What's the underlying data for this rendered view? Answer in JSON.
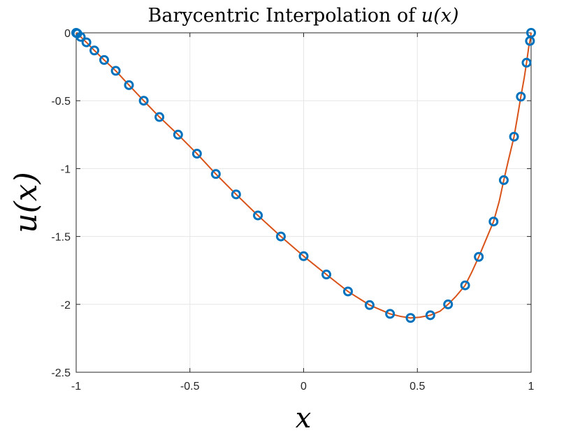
{
  "chart_data": {
    "type": "line",
    "title": "Barycentric Interpolation of u(x)",
    "xlabel": "x",
    "ylabel": "u(x)",
    "xlim": [
      -1,
      1
    ],
    "ylim": [
      -2.5,
      0
    ],
    "xticks": [
      -1,
      -0.5,
      0,
      0.5,
      1
    ],
    "xtick_labels": [
      "-1",
      "-0.5",
      "0",
      "0.5",
      "1"
    ],
    "yticks": [
      0,
      -0.5,
      -1,
      -1.5,
      -2,
      -2.5
    ],
    "ytick_labels": [
      "0",
      "-0.5",
      "-1",
      "-1.5",
      "-2",
      "-2.5"
    ],
    "grid": true,
    "series": [
      {
        "kind": "markers",
        "marker": "circle",
        "color": "#0072BD",
        "x": [
          -1.0,
          -0.995,
          -0.98,
          -0.955,
          -0.92,
          -0.877,
          -0.826,
          -0.768,
          -0.703,
          -0.634,
          -0.552,
          -0.469,
          -0.386,
          -0.297,
          -0.201,
          -0.1,
          0.0,
          0.1,
          0.195,
          0.29,
          0.38,
          0.47,
          0.557,
          0.635,
          0.71,
          0.77,
          0.835,
          0.88,
          0.925,
          0.955,
          0.98,
          0.995,
          1.0
        ],
        "y": [
          0.0,
          -0.005,
          -0.03,
          -0.07,
          -0.13,
          -0.2,
          -0.28,
          -0.385,
          -0.5,
          -0.62,
          -0.75,
          -0.89,
          -1.04,
          -1.19,
          -1.345,
          -1.5,
          -1.645,
          -1.78,
          -1.905,
          -2.005,
          -2.07,
          -2.1,
          -2.08,
          -2.0,
          -1.86,
          -1.65,
          -1.39,
          -1.085,
          -0.765,
          -0.47,
          -0.22,
          -0.06,
          0.0
        ]
      },
      {
        "kind": "line",
        "color": "#D95319",
        "x": [
          -1.0,
          -0.98,
          -0.955,
          -0.92,
          -0.877,
          -0.826,
          -0.768,
          -0.703,
          -0.634,
          -0.552,
          -0.469,
          -0.386,
          -0.297,
          -0.201,
          -0.1,
          0.0,
          0.1,
          0.195,
          0.29,
          0.38,
          0.43,
          0.47,
          0.51,
          0.557,
          0.6,
          0.635,
          0.67,
          0.71,
          0.74,
          0.77,
          0.8,
          0.835,
          0.86,
          0.88,
          0.9,
          0.925,
          0.94,
          0.955,
          0.97,
          0.98,
          0.99,
          0.995,
          1.0
        ],
        "y": [
          0.0,
          -0.03,
          -0.07,
          -0.13,
          -0.2,
          -0.28,
          -0.385,
          -0.5,
          -0.62,
          -0.75,
          -0.89,
          -1.04,
          -1.19,
          -1.345,
          -1.5,
          -1.645,
          -1.78,
          -1.905,
          -2.005,
          -2.07,
          -2.09,
          -2.1,
          -2.095,
          -2.08,
          -2.05,
          -2.0,
          -1.94,
          -1.86,
          -1.76,
          -1.65,
          -1.53,
          -1.39,
          -1.24,
          -1.085,
          -0.94,
          -0.765,
          -0.62,
          -0.47,
          -0.33,
          -0.22,
          -0.1,
          -0.06,
          0.0
        ]
      }
    ]
  }
}
